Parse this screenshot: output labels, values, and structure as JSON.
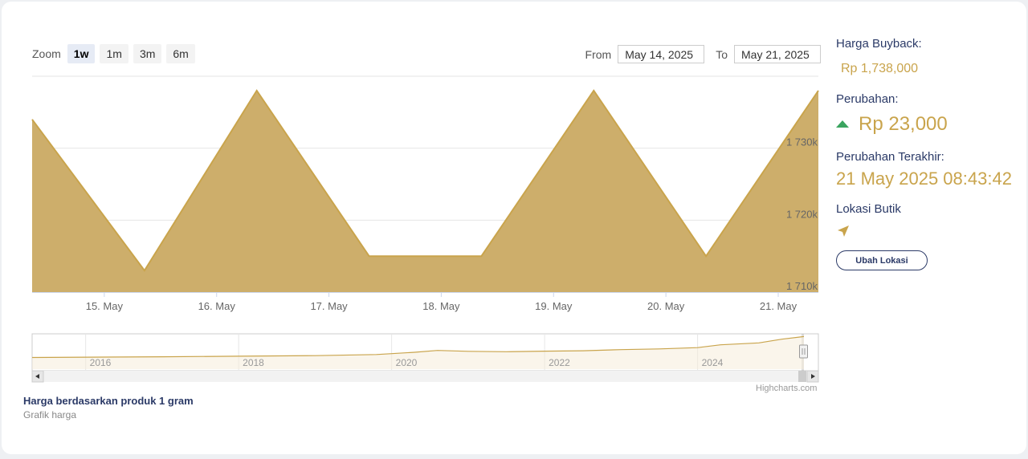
{
  "zoom": {
    "label": "Zoom",
    "buttons": [
      "1w",
      "1m",
      "3m",
      "6m"
    ],
    "active": "1w"
  },
  "range": {
    "from_label": "From",
    "from_value": "May 14, 2025",
    "to_label": "To",
    "to_value": "May 21, 2025"
  },
  "chart_data": {
    "type": "area",
    "x": [
      "2025-05-14",
      "2025-05-15",
      "2025-05-16",
      "2025-05-17",
      "2025-05-18",
      "2025-05-19",
      "2025-05-20",
      "2025-05-21"
    ],
    "values": [
      1734000,
      1713000,
      1738000,
      1715000,
      1715000,
      1738000,
      1715000,
      1738000
    ],
    "x_tick_labels": [
      "15. May",
      "16. May",
      "17. May",
      "18. May",
      "19. May",
      "20. May",
      "21. May"
    ],
    "y_tick_labels": [
      "1 710k",
      "1 720k",
      "1 730k"
    ],
    "y_ticks": [
      1710000,
      1720000,
      1730000
    ],
    "ylim": [
      1710000,
      1740000
    ],
    "grid": true,
    "fill_color": "#cdae6b",
    "line_color": "#c9a44c",
    "navigator": {
      "year_labels": [
        "2016",
        "2018",
        "2020",
        "2022",
        "2024"
      ],
      "years": [
        2016,
        2018,
        2020,
        2022,
        2024
      ],
      "xlim": [
        2015.3,
        2025.39
      ],
      "series_years": [
        2015.3,
        2016,
        2017,
        2018,
        2019,
        2019.8,
        2020.3,
        2020.6,
        2021,
        2021.5,
        2022,
        2022.5,
        2023,
        2023.5,
        2024,
        2024.3,
        2024.8,
        2025.1,
        2025.39
      ],
      "series_values": [
        620,
        640,
        660,
        690,
        720,
        780,
        900,
        1000,
        950,
        930,
        960,
        980,
        1040,
        1080,
        1150,
        1300,
        1400,
        1600,
        1738
      ]
    }
  },
  "side": {
    "buyback_label": "Harga Buyback:",
    "buyback_value": "Rp 1,738,000",
    "change_label": "Perubahan:",
    "change_value": "Rp 23,000",
    "last_change_label": "Perubahan Terakhir:",
    "last_change_value": "21 May 2025 08:43:42",
    "location_label": "Lokasi Butik",
    "location_button": "Ubah Lokasi"
  },
  "footer": {
    "title": "Harga berdasarkan produk 1 gram",
    "subtitle": "Grafik harga"
  },
  "credits": "Highcharts.com"
}
